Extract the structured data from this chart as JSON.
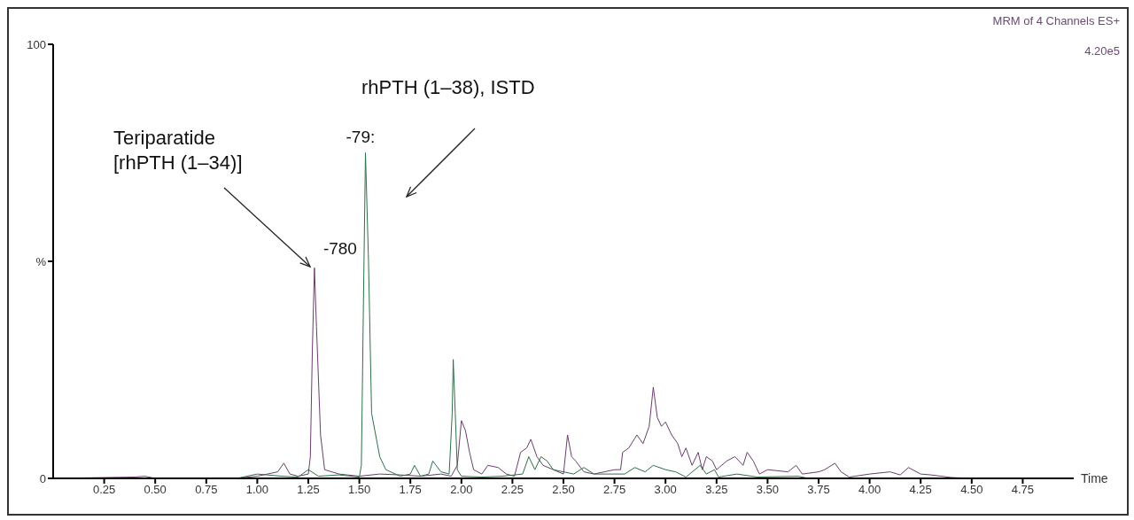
{
  "chart_data": {
    "type": "line",
    "xlabel": "Time",
    "xlim": [
      0,
      5
    ],
    "xticks": [
      0.25,
      {
        "value": 0.5,
        "label": "0.50"
      },
      0.75,
      {
        "value": 1,
        "label": "1.00"
      },
      1.25,
      {
        "value": 1.5,
        "label": "1.50"
      },
      1.75,
      {
        "value": 2,
        "label": "2.00"
      },
      2.25,
      {
        "value": 2.5,
        "label": "2.50"
      },
      2.75,
      {
        "value": 3,
        "label": "3.00"
      },
      3.25,
      {
        "value": 3.5,
        "label": "3.50"
      },
      3.75,
      {
        "value": 4,
        "label": "4.00"
      },
      4.25,
      {
        "value": 4.5,
        "label": "4.50"
      },
      4.75
    ],
    "ylim": [
      0,
      100
    ],
    "yticks": [
      0,
      {
        "value": 50,
        "label": "%"
      },
      100
    ],
    "marker": "none",
    "line_style": "solid",
    "annotations": [
      "Teriparatide\n[rhPTH (1–34)]",
      "rhPTH (1–38), ISTD",
      {
        "text": "-780",
        "x": 1.28,
        "y": 48.5
      },
      {
        "text": "-79:",
        "x": 1.53,
        "y": 75
      },
      "MRM of 4 Channels ES+",
      "4.20e5"
    ],
    "series": [
      {
        "color": "#6b3d6e",
        "x": [
          0,
          0.4,
          0.45,
          0.5,
          0.9,
          1.0,
          1.1,
          1.13,
          1.16,
          1.2,
          1.25,
          1.26,
          1.27,
          1.28,
          1.29,
          1.31,
          1.33,
          1.4,
          1.5,
          1.6,
          1.7,
          1.8,
          1.9,
          1.95,
          1.98,
          2.0,
          2.02,
          2.04,
          2.06,
          2.1,
          2.13,
          2.18,
          2.22,
          2.26,
          2.29,
          2.32,
          2.34,
          2.37,
          2.4,
          2.45,
          2.5,
          2.52,
          2.54,
          2.56,
          2.6,
          2.65,
          2.7,
          2.75,
          2.78,
          2.79,
          2.82,
          2.86,
          2.89,
          2.92,
          2.94,
          2.96,
          2.98,
          3.0,
          3.03,
          3.06,
          3.08,
          3.1,
          3.13,
          3.16,
          3.18,
          3.2,
          3.23,
          3.25,
          3.3,
          3.34,
          3.38,
          3.4,
          3.43,
          3.46,
          3.5,
          3.6,
          3.64,
          3.67,
          3.75,
          3.78,
          3.83,
          3.86,
          3.9,
          4.0,
          4.1,
          4.15,
          4.19,
          4.25,
          4.3,
          4.4,
          4.5,
          5.0
        ],
        "values": [
          0,
          0.3,
          0.5,
          0,
          0,
          0.5,
          1.5,
          3.5,
          1,
          0.5,
          1,
          5,
          30,
          48.5,
          35,
          10,
          2,
          1,
          0.5,
          1,
          0.8,
          0.5,
          1,
          0.5,
          3,
          13.3,
          11,
          6,
          2,
          1,
          3,
          2.5,
          1,
          0.5,
          6,
          7,
          9,
          5,
          3,
          2,
          1,
          10,
          5,
          4,
          1.5,
          1,
          1.5,
          2,
          2,
          6,
          7,
          10,
          8,
          12,
          21,
          14,
          12,
          13,
          10,
          8,
          5,
          7,
          3,
          6,
          2,
          5,
          4,
          2,
          4,
          5,
          3,
          6,
          4,
          1,
          2,
          1.5,
          3,
          1,
          1.5,
          2,
          3.5,
          1.5,
          0.3,
          1,
          1.5,
          0.8,
          2.5,
          1,
          0.8,
          0.2,
          0,
          0
        ]
      },
      {
        "color": "#2e7048",
        "x": [
          0,
          0.9,
          1.0,
          1.12,
          1.2,
          1.25,
          1.3,
          1.4,
          1.5,
          1.51,
          1.52,
          1.53,
          1.545,
          1.56,
          1.6,
          1.63,
          1.7,
          1.75,
          1.77,
          1.8,
          1.84,
          1.86,
          1.9,
          1.94,
          1.955,
          1.96,
          1.97,
          1.98,
          2.0,
          2.1,
          2.2,
          2.3,
          2.33,
          2.36,
          2.39,
          2.42,
          2.45,
          2.5,
          2.55,
          2.6,
          2.65,
          2.75,
          2.8,
          2.85,
          2.9,
          2.94,
          3.0,
          3.05,
          3.1,
          3.17,
          3.2,
          3.24,
          3.26,
          3.35,
          3.45,
          3.65,
          3.7,
          4.0,
          5.0
        ],
        "values": [
          0,
          0,
          1,
          0.5,
          0.3,
          2,
          0.5,
          0.8,
          0.3,
          3,
          40,
          75,
          50,
          15,
          5,
          2,
          0.5,
          1,
          3,
          0.5,
          1,
          4,
          1.5,
          1,
          15,
          27.4,
          15,
          2,
          0.5,
          0.3,
          0.5,
          1,
          5,
          2,
          5,
          4,
          2,
          1.5,
          1,
          2.5,
          1,
          1,
          1,
          2.5,
          1.5,
          3,
          2,
          1.5,
          0.3,
          3,
          1,
          2,
          0.3,
          1,
          0.3,
          0.5,
          0,
          0,
          0
        ]
      }
    ]
  }
}
